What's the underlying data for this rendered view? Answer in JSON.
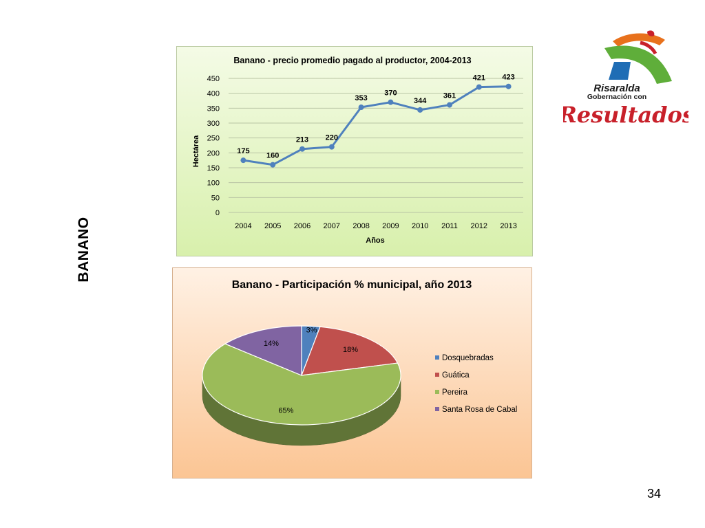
{
  "slide": {
    "side_label": "BANANO",
    "page_number": "34"
  },
  "logo": {
    "line1": "Risaralda",
    "line2": "Gobernación con",
    "line3": "Resultados",
    "colors": {
      "orange": "#e8711c",
      "green": "#5fae3a",
      "blue": "#1f6db5",
      "red": "#c8202a"
    }
  },
  "chart_data": [
    {
      "type": "line",
      "title": "Banano - precio promedio pagado al productor, 2004-2013",
      "xlabel": "Años",
      "ylabel": "Hectárea",
      "x": [
        "2004",
        "2005",
        "2006",
        "2007",
        "2008",
        "2009",
        "2010",
        "2011",
        "2012",
        "2013"
      ],
      "series": [
        {
          "values": [
            175,
            160,
            213,
            220,
            353,
            370,
            344,
            361,
            421,
            423
          ]
        }
      ],
      "data_labels": [
        "175",
        "160",
        "213",
        "220",
        "353",
        "370",
        "344",
        "361",
        "421",
        "423"
      ],
      "ylim": [
        0,
        450
      ],
      "yticks": [
        0,
        50,
        100,
        150,
        200,
        250,
        300,
        350,
        400,
        450
      ],
      "grid": true,
      "legend": "none",
      "colors": {
        "line": "#4f81bd"
      }
    },
    {
      "type": "pie",
      "title": "Banano - Participación % municipal, año 2013",
      "style": "3d",
      "slices": [
        {
          "label": "Dosquebradas",
          "value": 3,
          "text": "3%",
          "color": "#4f81bd"
        },
        {
          "label": "Guática",
          "value": 18,
          "text": "18%",
          "color": "#c0504d"
        },
        {
          "label": "Pereira",
          "value": 65,
          "text": "65%",
          "color": "#9bbb59"
        },
        {
          "label": "Santa Rosa de Cabal",
          "value": 14,
          "text": "14%",
          "color": "#8064a2"
        }
      ],
      "legend": "right"
    }
  ]
}
